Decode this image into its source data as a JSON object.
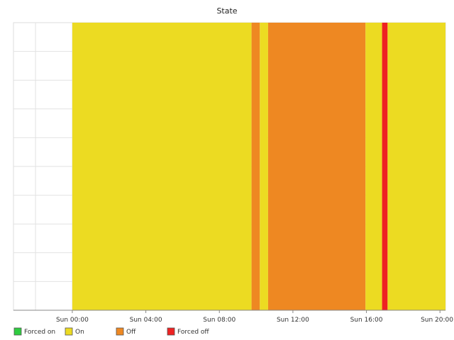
{
  "chart_data": {
    "type": "area",
    "title": "State",
    "xlabel": "",
    "ylabel": "",
    "x_tick_labels": [
      "Sun 00:00",
      "Sun 04:00",
      "Sun 08:00",
      "Sun 12:00",
      "Sun 16:00",
      "Sun 20:00"
    ],
    "x_tick_hours": [
      0,
      4,
      8,
      12,
      16,
      20
    ],
    "x_range_hours": [
      -3.2,
      20.3
    ],
    "grid": true,
    "legend_position": "bottom",
    "legend": [
      {
        "name": "Forced on",
        "color": "#2ecc40"
      },
      {
        "name": "On",
        "color": "#ecdb22"
      },
      {
        "name": "Off",
        "color": "#ee8822"
      },
      {
        "name": "Forced off",
        "color": "#ee2222"
      }
    ],
    "segments": [
      {
        "state": "On",
        "start_hour": 0.0,
        "end_hour": 9.75,
        "color": "#ecdb22"
      },
      {
        "state": "Off",
        "start_hour": 9.75,
        "end_hour": 10.2,
        "color": "#ee8822"
      },
      {
        "state": "On",
        "start_hour": 10.2,
        "end_hour": 10.65,
        "color": "#ecdb22"
      },
      {
        "state": "Off",
        "start_hour": 10.65,
        "end_hour": 15.95,
        "color": "#ee8822"
      },
      {
        "state": "On",
        "start_hour": 15.95,
        "end_hour": 16.85,
        "color": "#ecdb22"
      },
      {
        "state": "Forced off",
        "start_hour": 16.85,
        "end_hour": 17.15,
        "color": "#ee2222"
      },
      {
        "state": "On",
        "start_hour": 17.15,
        "end_hour": 20.3,
        "color": "#ecdb22"
      }
    ]
  }
}
